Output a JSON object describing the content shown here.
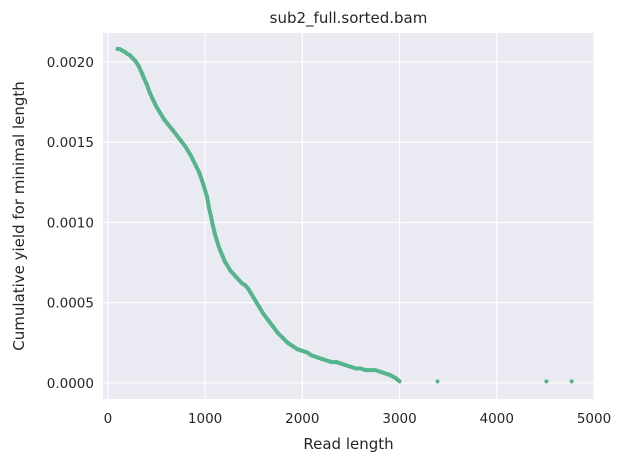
{
  "chart_data": {
    "type": "scatter",
    "title": "sub2_full.sorted.bam",
    "xlabel": "Read length",
    "ylabel": "Cumulative yield for minimal length",
    "xlim": [
      -50,
      5000
    ],
    "ylim": [
      -0.0001,
      0.00218
    ],
    "xticks": [
      0,
      1000,
      2000,
      3000,
      4000,
      5000
    ],
    "xtick_labels": [
      "0",
      "1000",
      "2000",
      "3000",
      "4000",
      "5000"
    ],
    "yticks": [
      0.0,
      0.0005,
      0.001,
      0.0015,
      0.002
    ],
    "ytick_labels": [
      "0.0000",
      "0.0005",
      "0.0010",
      "0.0015",
      "0.0020"
    ],
    "grid": true,
    "background": "#eaeaf2",
    "grid_color": "#ffffff",
    "marker_color": "#55b48c",
    "series": [
      {
        "x": [
          100,
          120,
          150,
          180,
          200,
          230,
          260,
          290,
          320,
          350,
          370,
          400,
          430,
          460,
          500,
          540,
          580,
          620,
          660,
          700,
          750,
          800,
          850,
          900,
          940,
          980,
          1020,
          1040,
          1060,
          1080,
          1100,
          1120,
          1140,
          1160,
          1180,
          1200,
          1230,
          1260,
          1290,
          1320,
          1350,
          1380,
          1410,
          1440,
          1470,
          1500,
          1530,
          1560,
          1600,
          1650,
          1700,
          1750,
          1800,
          1850,
          1900,
          1950,
          2000,
          2050,
          2100,
          2150,
          2200,
          2250,
          2300,
          2350,
          2400,
          2450,
          2500,
          2550,
          2600,
          2650,
          2700,
          2750,
          2800,
          2850,
          2900,
          2930,
          2960,
          2980,
          3000,
          3390,
          4510,
          4770
        ],
        "y": [
          0.00208,
          0.00208,
          0.00207,
          0.00206,
          0.00205,
          0.00204,
          0.00202,
          0.002,
          0.00197,
          0.00193,
          0.0019,
          0.00186,
          0.00181,
          0.00177,
          0.00172,
          0.00168,
          0.00164,
          0.00161,
          0.00158,
          0.00155,
          0.00151,
          0.00147,
          0.00142,
          0.00136,
          0.00131,
          0.00124,
          0.00116,
          0.00109,
          0.00104,
          0.00098,
          0.00093,
          0.00089,
          0.00085,
          0.00082,
          0.00079,
          0.00076,
          0.00073,
          0.0007,
          0.00068,
          0.00066,
          0.00064,
          0.00062,
          0.00061,
          0.00059,
          0.00056,
          0.00053,
          0.0005,
          0.00047,
          0.00043,
          0.00039,
          0.00035,
          0.00031,
          0.00028,
          0.00025,
          0.00023,
          0.00021,
          0.0002,
          0.00019,
          0.00017,
          0.00016,
          0.00015,
          0.00014,
          0.00013,
          0.00013,
          0.00012,
          0.00011,
          0.0001,
          9e-05,
          9e-05,
          8e-05,
          8e-05,
          8e-05,
          7e-05,
          6e-05,
          5e-05,
          4e-05,
          3e-05,
          2e-05,
          1e-05,
          1e-05,
          1e-05,
          1e-05
        ]
      }
    ]
  }
}
